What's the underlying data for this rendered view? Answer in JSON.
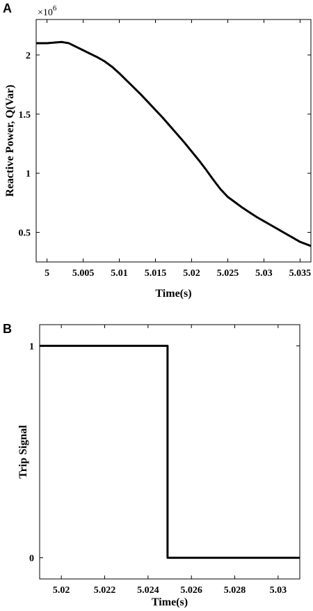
{
  "chart_data": [
    {
      "panel": "A",
      "type": "line",
      "xlabel": "Time(s)",
      "ylabel": "Reactive Power, Q(Var)",
      "y_exponent_label": "×10",
      "y_exponent_power": "6",
      "xlim": [
        4.9985,
        5.0365
      ],
      "ylim": [
        0.25,
        2.3
      ],
      "xticks": [
        5,
        5.005,
        5.01,
        5.015,
        5.02,
        5.025,
        5.03,
        5.035
      ],
      "xtick_labels": [
        "5",
        "5.005",
        "5.01",
        "5.015",
        "5.02",
        "5.025",
        "5.03",
        "5.035"
      ],
      "yticks": [
        0.5,
        1,
        1.5,
        2
      ],
      "ytick_labels": [
        "0.5",
        "1",
        "1.5",
        "2"
      ],
      "grid": false,
      "series": [
        {
          "x": [
            4.9985,
            5.0,
            5.001,
            5.002,
            5.003,
            5.004,
            5.005,
            5.006,
            5.007,
            5.008,
            5.009,
            5.01,
            5.011,
            5.012,
            5.013,
            5.014,
            5.015,
            5.016,
            5.017,
            5.018,
            5.019,
            5.02,
            5.021,
            5.022,
            5.023,
            5.024,
            5.025,
            5.026,
            5.027,
            5.028,
            5.029,
            5.03,
            5.031,
            5.032,
            5.033,
            5.034,
            5.035,
            5.0365
          ],
          "y": [
            2.1,
            2.1,
            2.105,
            2.11,
            2.1,
            2.07,
            2.04,
            2.01,
            1.98,
            1.945,
            1.9,
            1.845,
            1.785,
            1.725,
            1.665,
            1.6,
            1.535,
            1.47,
            1.4,
            1.33,
            1.26,
            1.185,
            1.11,
            1.03,
            0.945,
            0.865,
            0.8,
            0.755,
            0.71,
            0.67,
            0.63,
            0.595,
            0.56,
            0.525,
            0.49,
            0.455,
            0.42,
            0.385
          ]
        }
      ]
    },
    {
      "panel": "B",
      "type": "line",
      "xlabel": "Time(s)",
      "ylabel": "Trip Signal",
      "xlim": [
        5.019,
        5.031
      ],
      "ylim": [
        -0.1,
        1.1
      ],
      "xticks": [
        5.02,
        5.022,
        5.024,
        5.026,
        5.028,
        5.03
      ],
      "xtick_labels": [
        "5.02",
        "5.022",
        "5.024",
        "5.026",
        "5.028",
        "5.03"
      ],
      "yticks": [
        0,
        1
      ],
      "ytick_labels": [
        "0",
        "1"
      ],
      "grid": false,
      "series": [
        {
          "x": [
            5.019,
            5.0249,
            5.0249,
            5.031
          ],
          "y": [
            1,
            1,
            0,
            0
          ]
        }
      ]
    }
  ]
}
